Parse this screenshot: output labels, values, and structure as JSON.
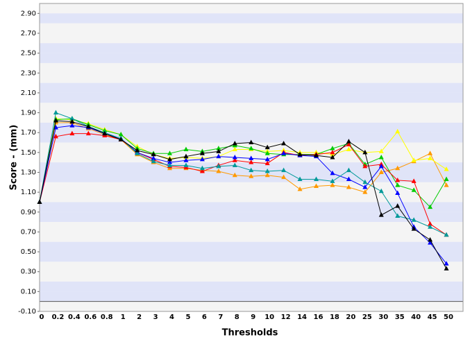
{
  "chart_data": {
    "type": "line",
    "x_label": "Thresholds",
    "y_label": "Score - (mm)",
    "categories": [
      "0",
      "0.2",
      "0.4",
      "0.6",
      "0.8",
      "1",
      "2",
      "3",
      "4",
      "5",
      "6",
      "7",
      "8",
      "9",
      "10",
      "12",
      "14",
      "16",
      "18",
      "20",
      "25",
      "30",
      "35",
      "40",
      "45",
      "50"
    ],
    "ylim": [
      -0.1,
      3.0
    ],
    "yticks": [
      {
        "value": -0.1,
        "label": "-0.10"
      },
      {
        "value": 0.1,
        "label": "0.10"
      },
      {
        "value": 0.3,
        "label": "0.30"
      },
      {
        "value": 0.5,
        "label": "0.50"
      },
      {
        "value": 0.7,
        "label": "0.70"
      },
      {
        "value": 0.9,
        "label": "0.90"
      },
      {
        "value": 1.1,
        "label": "1.10"
      },
      {
        "value": 1.3,
        "label": "1.30"
      },
      {
        "value": 1.5,
        "label": "1.50"
      },
      {
        "value": 1.7,
        "label": "1.70"
      },
      {
        "value": 1.9,
        "label": "1.90"
      },
      {
        "value": 2.1,
        "label": "2.10"
      },
      {
        "value": 2.3,
        "label": "2.30"
      },
      {
        "value": 2.5,
        "label": "2.50"
      },
      {
        "value": 2.7,
        "label": "2.70"
      },
      {
        "value": 2.9,
        "label": "2.90"
      }
    ],
    "marker": "triangle",
    "series": [
      {
        "color": "#ff9900",
        "values": [
          1.0,
          1.8,
          1.8,
          1.74,
          1.68,
          1.63,
          1.48,
          1.4,
          1.34,
          1.34,
          1.32,
          1.31,
          1.27,
          1.26,
          1.27,
          1.25,
          1.13,
          1.16,
          1.17,
          1.15,
          1.1,
          1.3,
          1.34,
          1.41,
          1.49,
          1.17
        ]
      },
      {
        "color": "#ffff00",
        "values": [
          1.0,
          1.84,
          1.83,
          1.79,
          1.73,
          1.68,
          1.56,
          1.48,
          1.44,
          1.45,
          1.44,
          1.46,
          1.53,
          1.53,
          1.51,
          1.52,
          1.5,
          1.5,
          1.48,
          1.53,
          1.5,
          1.51,
          1.71,
          1.42,
          1.44,
          1.33
        ]
      },
      {
        "color": "#00cc00",
        "values": [
          1.0,
          1.83,
          1.84,
          1.78,
          1.72,
          1.68,
          1.54,
          1.49,
          1.49,
          1.53,
          1.51,
          1.54,
          1.57,
          1.54,
          1.49,
          1.48,
          1.48,
          1.48,
          1.54,
          1.59,
          1.38,
          1.45,
          1.17,
          1.12,
          0.95,
          1.23
        ]
      },
      {
        "color": "#ff0000",
        "values": [
          1.0,
          1.66,
          1.69,
          1.69,
          1.67,
          1.63,
          1.5,
          1.43,
          1.36,
          1.35,
          1.31,
          1.37,
          1.42,
          1.4,
          1.39,
          1.5,
          1.47,
          1.48,
          1.5,
          1.58,
          1.36,
          1.38,
          1.22,
          1.21,
          0.78,
          0.67
        ]
      },
      {
        "color": "#0000ff",
        "values": [
          1.0,
          1.75,
          1.77,
          1.75,
          1.69,
          1.64,
          1.5,
          1.44,
          1.4,
          1.42,
          1.43,
          1.46,
          1.45,
          1.44,
          1.43,
          1.49,
          1.47,
          1.46,
          1.29,
          1.23,
          1.15,
          1.36,
          1.09,
          0.75,
          0.59,
          0.38
        ]
      },
      {
        "color": "#009999",
        "values": [
          1.0,
          1.9,
          1.84,
          1.76,
          1.7,
          1.64,
          1.49,
          1.41,
          1.37,
          1.37,
          1.34,
          1.36,
          1.37,
          1.32,
          1.31,
          1.32,
          1.23,
          1.23,
          1.21,
          1.32,
          1.2,
          1.11,
          0.86,
          0.82,
          0.75,
          0.67
        ]
      },
      {
        "color": "#000000",
        "values": [
          1.0,
          1.82,
          1.81,
          1.76,
          1.69,
          1.63,
          1.52,
          1.48,
          1.43,
          1.46,
          1.49,
          1.51,
          1.59,
          1.6,
          1.55,
          1.59,
          1.48,
          1.47,
          1.45,
          1.61,
          1.5,
          0.87,
          0.96,
          0.73,
          0.62,
          0.33
        ]
      }
    ]
  }
}
